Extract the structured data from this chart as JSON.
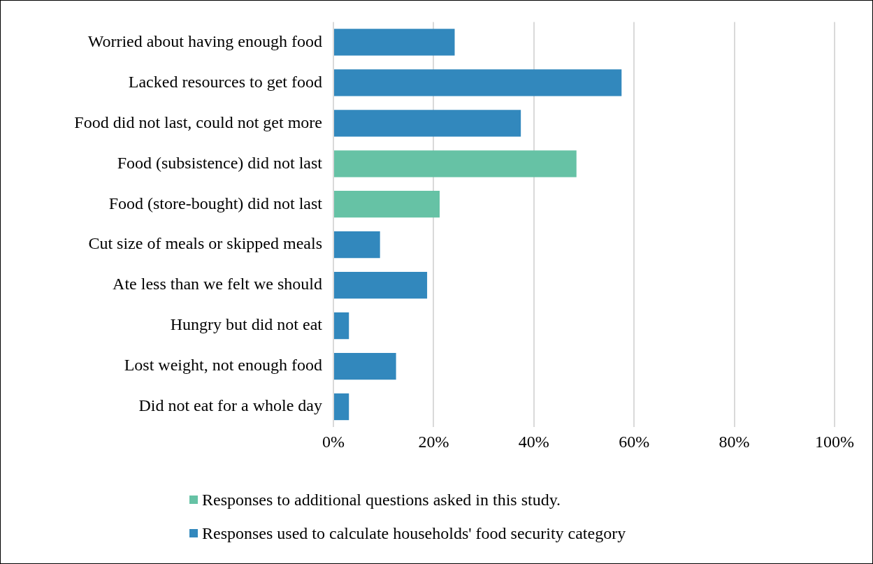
{
  "chart_data": {
    "type": "bar",
    "orientation": "horizontal",
    "categories": [
      "Worried about having enough food",
      "Lacked resources to get food",
      "Food did not last, could not get more",
      "Food (subsistence) did not last",
      "Food (store-bought) did not last",
      "Cut size of meals or skipped meals",
      "Ate less than we felt we should",
      "Hungry but did not eat",
      "Lost weight, not enough food",
      "Did not eat for a whole day"
    ],
    "series": [
      {
        "name": "Responses to additional questions asked in this study.",
        "color": "#66c2a5",
        "values": [
          null,
          null,
          null,
          48.5,
          21.2,
          null,
          null,
          null,
          null,
          null
        ]
      },
      {
        "name": "Responses used to calculate households' food security category",
        "color": "#3288bd",
        "values": [
          24.2,
          57.5,
          37.4,
          null,
          null,
          9.3,
          18.7,
          3.1,
          12.5,
          3.1
        ]
      }
    ],
    "xlim": [
      0,
      100
    ],
    "xticks": [
      {
        "value": 0,
        "label": "0%"
      },
      {
        "value": 20,
        "label": "20%"
      },
      {
        "value": 40,
        "label": "40%"
      },
      {
        "value": 60,
        "label": "60%"
      },
      {
        "value": 80,
        "label": "80%"
      },
      {
        "value": 100,
        "label": "100%"
      }
    ],
    "grid": "x",
    "legend": "bottom"
  }
}
